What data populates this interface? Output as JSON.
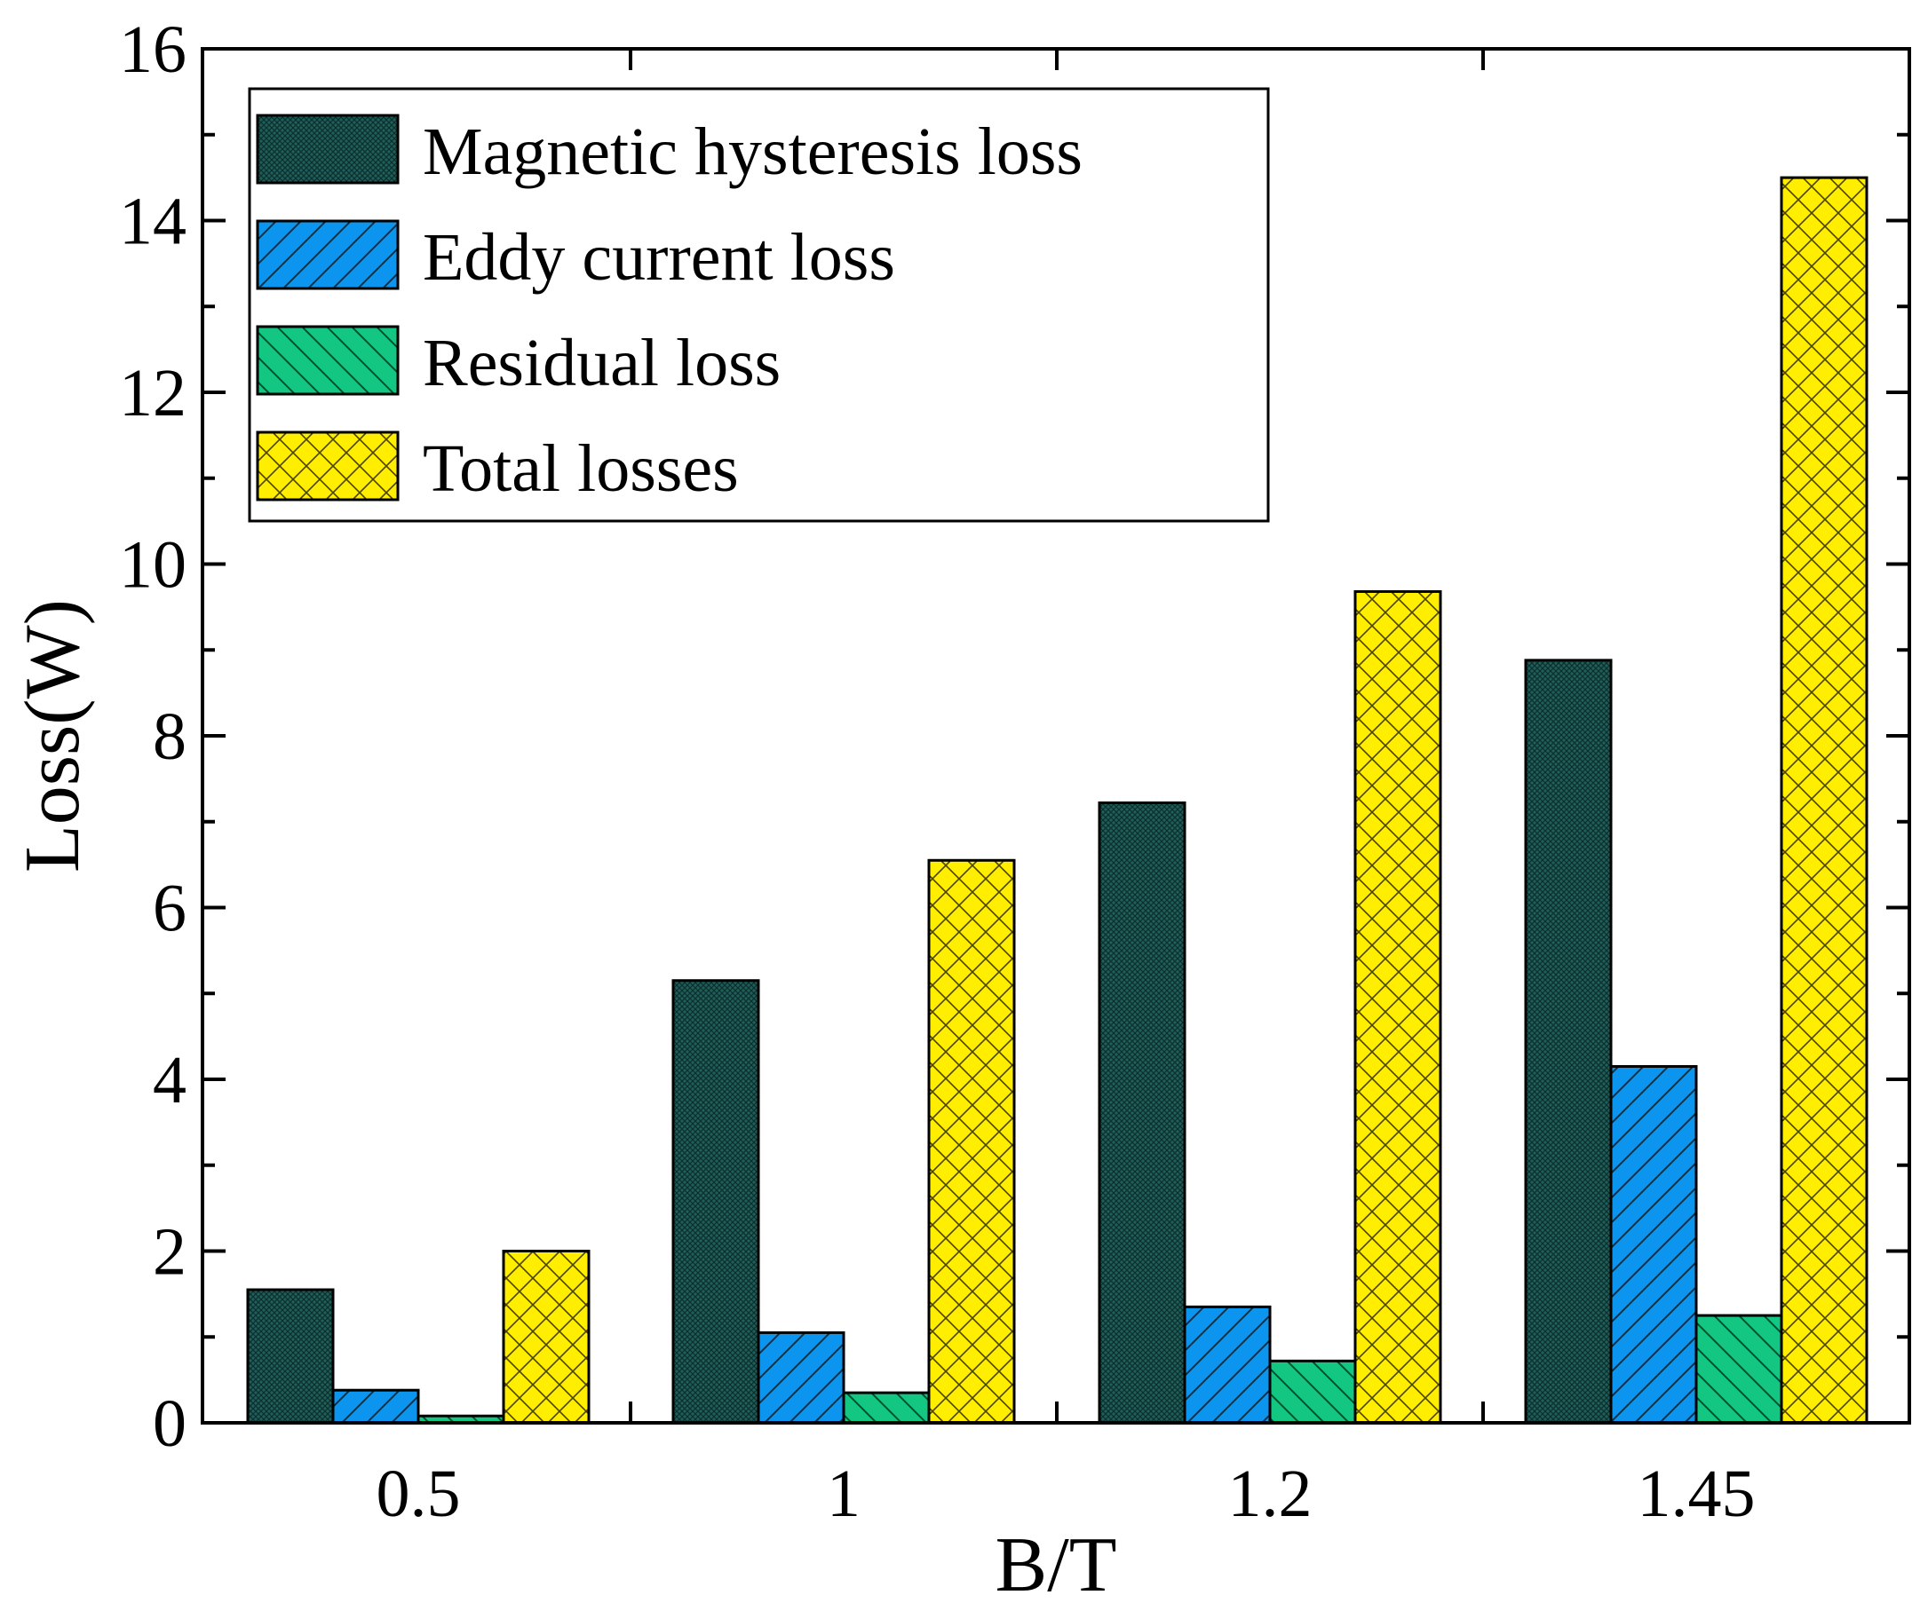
{
  "chart_data": {
    "type": "bar",
    "title": "",
    "xlabel": "B/T",
    "ylabel": "Loss(W)",
    "categories": [
      "0.5",
      "1",
      "1.2",
      "1.45"
    ],
    "ylim": [
      0,
      16
    ],
    "yticks": [
      "0",
      "2",
      "4",
      "6",
      "8",
      "10",
      "12",
      "14",
      "16"
    ],
    "grid": false,
    "legend_position": "top-left",
    "series": [
      {
        "name": "Magnetic hysteresis loss",
        "values": [
          1.55,
          5.15,
          7.22,
          8.88
        ],
        "color": "#1f5e59",
        "pattern": "crosshatch-dense"
      },
      {
        "name": "Eddy current loss",
        "values": [
          0.38,
          1.05,
          1.35,
          4.15
        ],
        "color": "#0b95ef",
        "pattern": "diagonal-forward"
      },
      {
        "name": "Residual loss",
        "values": [
          0.08,
          0.35,
          0.72,
          1.25
        ],
        "color": "#13c783",
        "pattern": "diagonal-back"
      },
      {
        "name": "Total losses",
        "values": [
          2.0,
          6.55,
          9.68,
          14.5
        ],
        "color": "#ffee00",
        "pattern": "crosshatch"
      }
    ]
  }
}
